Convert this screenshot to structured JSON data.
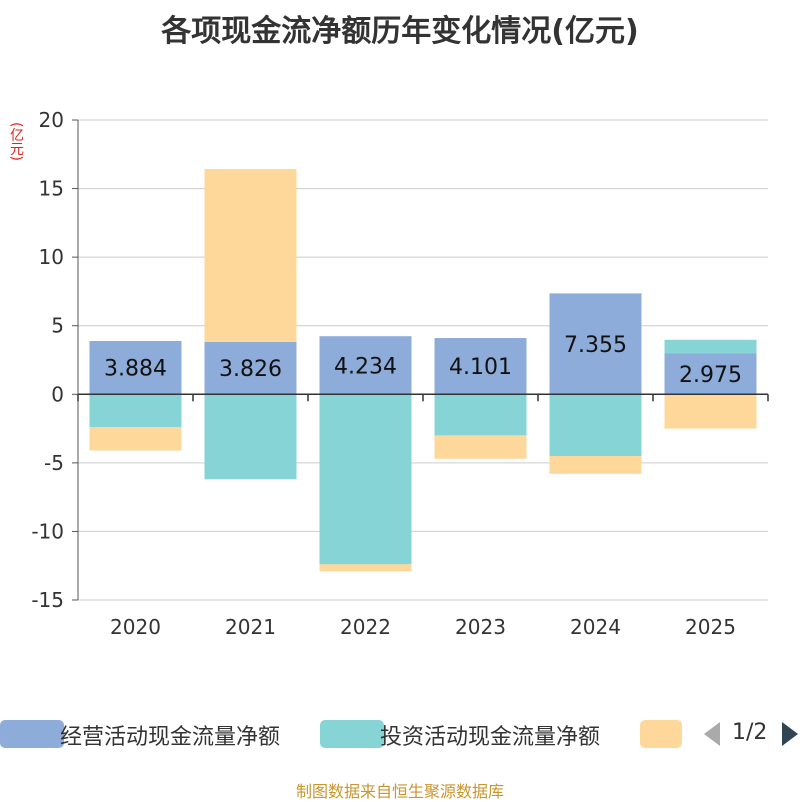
{
  "chart_data": {
    "type": "bar",
    "stacked": true,
    "title": "各项现金流净额历年变化情况(亿元)",
    "ylabel": "(亿元)",
    "categories": [
      "2020",
      "2021",
      "2022",
      "2023",
      "2024",
      "2025"
    ],
    "ylim": [
      -15,
      20
    ],
    "yticks": [
      20,
      15,
      10,
      5,
      0,
      -5,
      -10,
      -15
    ],
    "series": [
      {
        "name": "经营活动现金流量净额",
        "color": "#8eacd9",
        "values": [
          3.884,
          3.826,
          4.234,
          4.101,
          7.355,
          2.975
        ]
      },
      {
        "name": "投资活动现金流量净额",
        "color": "#86d4d6",
        "values": [
          -2.4,
          -6.2,
          -12.4,
          -3.0,
          -4.5,
          1.0
        ]
      },
      {
        "name": "",
        "color": "#fed89a",
        "values": [
          -1.7,
          12.6,
          -0.5,
          -1.7,
          -1.3,
          -2.5
        ]
      }
    ],
    "data_labels": [
      "3.884",
      "3.826",
      "4.234",
      "4.101",
      "7.355",
      "2.975"
    ]
  },
  "legend": {
    "pager": "1/2"
  },
  "source": "制图数据来自恒生聚源数据库"
}
